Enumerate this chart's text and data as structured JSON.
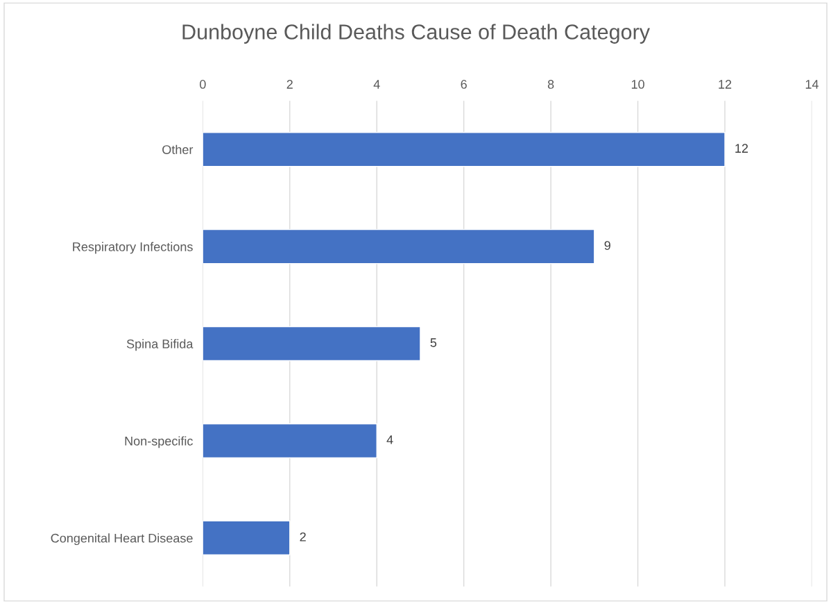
{
  "chart_data": {
    "type": "bar",
    "orientation": "horizontal",
    "title": "Dunboyne Child Deaths Cause of Death Category",
    "categories": [
      "Other",
      "Respiratory Infections",
      "Spina Bifida",
      "Non-specific",
      "Congenital Heart Disease"
    ],
    "values": [
      12,
      9,
      5,
      4,
      2
    ],
    "color": "#4472c4",
    "xlim": [
      0,
      14
    ],
    "xticks": [
      0,
      2,
      4,
      6,
      8,
      10,
      12,
      14
    ],
    "grid": "x",
    "data_labels": true
  }
}
